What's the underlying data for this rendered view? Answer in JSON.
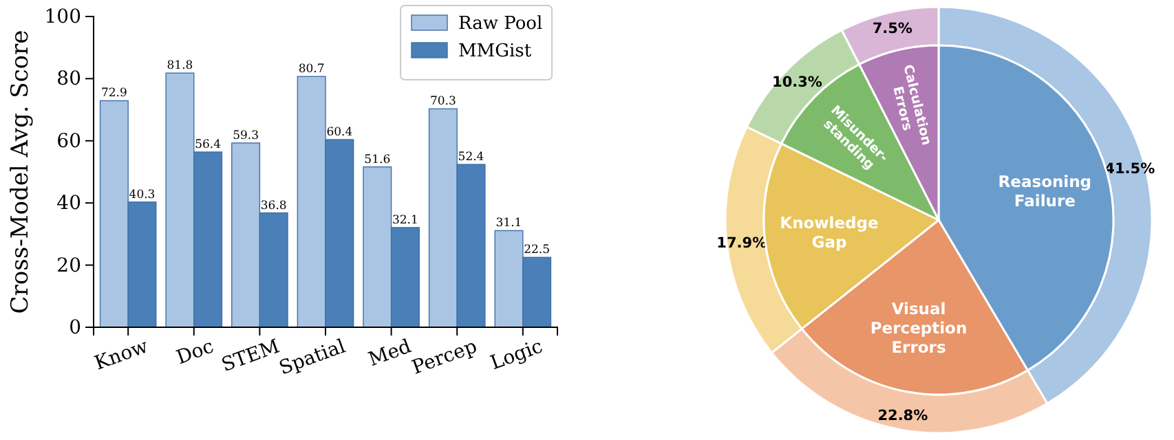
{
  "chart_data": [
    {
      "type": "bar",
      "ylabel": "Cross-Model Avg. Score",
      "categories": [
        "Know",
        "Doc",
        "STEM",
        "Spatial",
        "Med",
        "Percep",
        "Logic"
      ],
      "series": [
        {
          "name": "Raw Pool",
          "color": "#a9c5e3",
          "values": [
            72.9,
            81.8,
            59.3,
            80.7,
            51.6,
            70.3,
            31.1
          ]
        },
        {
          "name": "MMGist",
          "color": "#4a7fb8",
          "values": [
            40.3,
            56.4,
            36.8,
            60.4,
            32.1,
            52.4,
            22.5
          ]
        }
      ],
      "ylim": [
        0,
        100
      ],
      "yticks": [
        0,
        20,
        40,
        60,
        80,
        100
      ],
      "data_labels": true,
      "legend": "top right"
    },
    {
      "type": "donut",
      "categories": [
        "Reasoning\nFailure",
        "Visual\nPerception\nErrors",
        "Knowledge\nGap",
        "Misunder-\nstanding",
        "Calculation\nErrors"
      ],
      "series": [
        {
          "values": [
            41.5,
            22.8,
            17.9,
            10.3,
            7.5
          ],
          "colors": [
            "#a9c6e4",
            "#f4c6a7",
            "#f6da98",
            "#b9d8aa",
            "#d9b6d6"
          ]
        },
        {
          "values": [
            41.5,
            22.8,
            17.9,
            10.3,
            7.5
          ],
          "colors": [
            "#6b9dcc",
            "#e8956a",
            "#e8c45a",
            "#7dbb6b",
            "#b07ab5"
          ]
        }
      ],
      "value_labels": [
        "41.5%",
        "22.8%",
        "17.9%",
        "10.3%",
        "7.5%"
      ]
    }
  ]
}
